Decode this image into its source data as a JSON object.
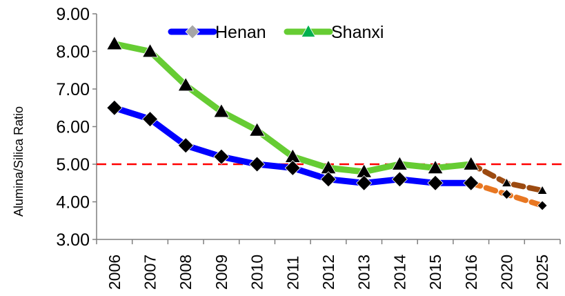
{
  "chart_data": {
    "type": "line",
    "title": "",
    "xlabel": "",
    "ylabel": "Alumina/Silica Ratio",
    "ylim": [
      3,
      9
    ],
    "yticks": [
      "3.00",
      "4.00",
      "5.00",
      "6.00",
      "7.00",
      "8.00",
      "9.00"
    ],
    "categories": [
      "2006",
      "2007",
      "2008",
      "2009",
      "2010",
      "2011",
      "2012",
      "2013",
      "2014",
      "2015",
      "2016",
      "2020",
      "2025"
    ],
    "legend_position": "top",
    "grid": false,
    "reference_line": {
      "y": 5.0,
      "color": "#ff0000",
      "style": "dashed"
    },
    "series": [
      {
        "name": "Henan",
        "color": "#0000ff",
        "marker": "diamond",
        "marker_color": "#000000",
        "legend_marker_color": "#a6a6a6",
        "values": [
          6.5,
          6.2,
          5.5,
          5.2,
          5.0,
          4.9,
          4.6,
          4.5,
          4.6,
          4.5,
          4.5,
          null,
          null
        ],
        "projection": {
          "color": "#e87722",
          "style": "dashed",
          "values": [
            null,
            null,
            null,
            null,
            null,
            null,
            null,
            null,
            null,
            null,
            4.5,
            4.2,
            3.9
          ]
        }
      },
      {
        "name": "Shanxi",
        "color": "#66cc33",
        "marker": "triangle",
        "marker_color": "#000000",
        "legend_marker_color": "#00b050",
        "values": [
          8.2,
          8.0,
          7.1,
          6.4,
          5.9,
          5.2,
          4.9,
          4.8,
          5.0,
          4.9,
          5.0,
          null,
          null
        ],
        "projection": {
          "color": "#9c4a10",
          "style": "dashed",
          "values": [
            null,
            null,
            null,
            null,
            null,
            null,
            null,
            null,
            null,
            null,
            5.0,
            4.5,
            4.3
          ]
        }
      }
    ]
  }
}
